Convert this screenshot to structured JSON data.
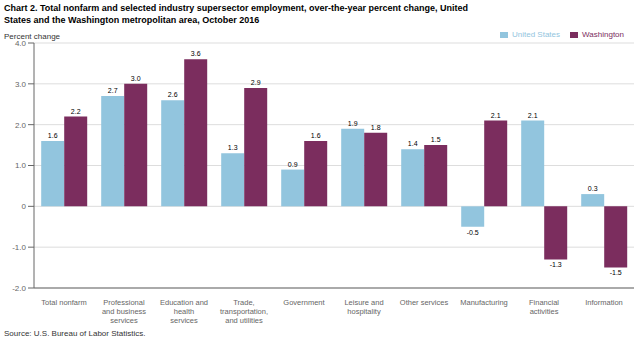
{
  "chart_data": {
    "type": "bar",
    "title": "Chart 2. Total nonfarm and selected industry supersector employment, over-the-year percent change, United\nStates and the Washington metropolitan area, October 2016",
    "y_label": "Percent change",
    "annotations": [
      "Source: U.S. Bureau of Labor Statistics."
    ],
    "categories": [
      "Total nonfarm",
      "Professional\nand business\nservices",
      "Education and\nhealth\nservices",
      "Trade,\ntransportation,\nand utilities",
      "Government",
      "Leisure and\nhospitality",
      "Other services",
      "Manufacturing",
      "Financial\nactivities",
      "Information"
    ],
    "series": [
      {
        "name": "United States",
        "color": "#92C5DE",
        "values": [
          1.6,
          2.7,
          2.6,
          1.3,
          0.9,
          1.9,
          1.4,
          -0.5,
          2.1,
          0.3
        ],
        "value_labels": [
          "1.6",
          "2.7",
          "2.6",
          "1.3",
          "0.9",
          "1.9",
          "1.4",
          "-0.5",
          "2.1",
          "0.3"
        ]
      },
      {
        "name": "Washington",
        "color": "#7B2D5E",
        "values": [
          2.2,
          3.0,
          3.6,
          2.9,
          1.6,
          1.8,
          1.5,
          2.1,
          -1.3,
          -1.5
        ],
        "value_labels": [
          "2.2",
          "3.0",
          "3.6",
          "2.9",
          "1.6",
          "1.8",
          "1.5",
          "2.1",
          "-1.3",
          "-1.5"
        ]
      }
    ],
    "ylim": [
      -2.0,
      4.0
    ],
    "yticks": [
      {
        "value": -2.0,
        "label": "-2.0"
      },
      {
        "value": -1.0,
        "label": "-1.0"
      },
      0,
      {
        "value": 1.0,
        "label": "1.0"
      },
      {
        "value": 2.0,
        "label": "2.0"
      },
      {
        "value": 3.0,
        "label": "3.0"
      },
      {
        "value": 4.0,
        "label": "4.0"
      }
    ],
    "grid": true,
    "legend": "upper right",
    "data_labels": true
  }
}
